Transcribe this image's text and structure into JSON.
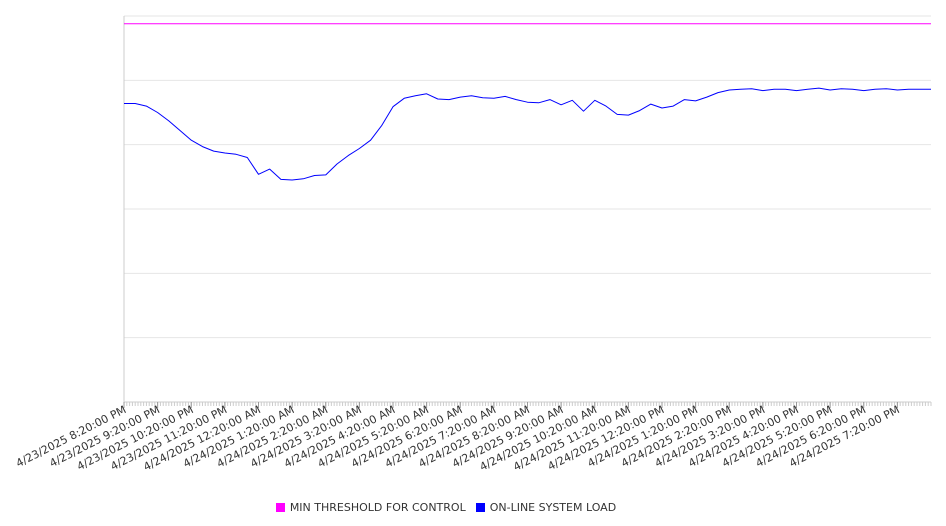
{
  "chart_data": {
    "type": "line",
    "title": "",
    "xlabel": "",
    "ylabel": "",
    "grid": true,
    "legend_position": "bottom",
    "ylim": [
      0,
      6
    ],
    "y_gridlines": [
      0,
      1,
      2,
      3,
      4,
      5,
      6
    ],
    "x_range": [
      "4/23/2025 8:20:00 PM",
      "4/24/2025 8:20:00 PM"
    ],
    "x_tick_labels": [
      "4/23/2025 8:20:00 PM",
      "4/23/2025 9:20:00 PM",
      "4/23/2025 10:20:00 PM",
      "4/23/2025 11:20:00 PM",
      "4/24/2025 12:20:00 AM",
      "4/24/2025 1:20:00 AM",
      "4/24/2025 2:20:00 AM",
      "4/24/2025 3:20:00 AM",
      "4/24/2025 4:20:00 AM",
      "4/24/2025 5:20:00 AM",
      "4/24/2025 6:20:00 AM",
      "4/24/2025 7:20:00 AM",
      "4/24/2025 8:20:00 AM",
      "4/24/2025 9:20:00 AM",
      "4/24/2025 10:20:00 AM",
      "4/24/2025 11:20:00 AM",
      "4/24/2025 12:20:00 PM",
      "4/24/2025 1:20:00 PM",
      "4/24/2025 2:20:00 PM",
      "4/24/2025 3:20:00 PM",
      "4/24/2025 4:20:00 PM",
      "4/24/2025 5:20:00 PM",
      "4/24/2025 6:20:00 PM",
      "4/24/2025 7:20:00 PM"
    ],
    "series": [
      {
        "name": "MIN THRESHOLD FOR CONTROL",
        "color": "#ff00ff",
        "x": [
          "4/23/2025 8:20:00 PM",
          "4/24/2025 8:20:00 PM"
        ],
        "values": [
          5.88,
          5.88
        ]
      },
      {
        "name": "ON-LINE SYSTEM LOAD",
        "color": "#0000ff",
        "x": [
          "4/23/2025 8:20:00 PM",
          "4/23/2025 8:40:00 PM",
          "4/23/2025 9:00:00 PM",
          "4/23/2025 9:20:00 PM",
          "4/23/2025 9:40:00 PM",
          "4/23/2025 10:00:00 PM",
          "4/23/2025 10:20:00 PM",
          "4/23/2025 10:40:00 PM",
          "4/23/2025 11:00:00 PM",
          "4/23/2025 11:20:00 PM",
          "4/23/2025 11:40:00 PM",
          "4/24/2025 12:00:00 AM",
          "4/24/2025 12:20:00 AM",
          "4/24/2025 12:40:00 AM",
          "4/24/2025 1:00:00 AM",
          "4/24/2025 1:20:00 AM",
          "4/24/2025 1:40:00 AM",
          "4/24/2025 2:00:00 AM",
          "4/24/2025 2:20:00 AM",
          "4/24/2025 2:40:00 AM",
          "4/24/2025 3:00:00 AM",
          "4/24/2025 3:20:00 AM",
          "4/24/2025 3:40:00 AM",
          "4/24/2025 4:00:00 AM",
          "4/24/2025 4:20:00 AM",
          "4/24/2025 4:40:00 AM",
          "4/24/2025 5:00:00 AM",
          "4/24/2025 5:20:00 AM",
          "4/24/2025 5:40:00 AM",
          "4/24/2025 6:00:00 AM",
          "4/24/2025 6:20:00 AM",
          "4/24/2025 6:40:00 AM",
          "4/24/2025 7:00:00 AM",
          "4/24/2025 7:20:00 AM",
          "4/24/2025 7:40:00 AM",
          "4/24/2025 8:00:00 AM",
          "4/24/2025 8:20:00 AM",
          "4/24/2025 8:40:00 AM",
          "4/24/2025 9:00:00 AM",
          "4/24/2025 9:20:00 AM",
          "4/24/2025 9:40:00 AM",
          "4/24/2025 10:00:00 AM",
          "4/24/2025 10:20:00 AM",
          "4/24/2025 10:40:00 AM",
          "4/24/2025 11:00:00 AM",
          "4/24/2025 11:20:00 AM",
          "4/24/2025 11:40:00 AM",
          "4/24/2025 12:00:00 PM",
          "4/24/2025 12:20:00 PM",
          "4/24/2025 12:40:00 PM",
          "4/24/2025 1:00:00 PM",
          "4/24/2025 1:20:00 PM",
          "4/24/2025 1:40:00 PM",
          "4/24/2025 2:00:00 PM",
          "4/24/2025 2:20:00 PM",
          "4/24/2025 2:40:00 PM",
          "4/24/2025 3:00:00 PM",
          "4/24/2025 3:20:00 PM",
          "4/24/2025 3:40:00 PM",
          "4/24/2025 4:00:00 PM",
          "4/24/2025 4:20:00 PM",
          "4/24/2025 4:40:00 PM",
          "4/24/2025 5:00:00 PM",
          "4/24/2025 5:20:00 PM",
          "4/24/2025 5:40:00 PM",
          "4/24/2025 6:00:00 PM",
          "4/24/2025 6:20:00 PM",
          "4/24/2025 6:40:00 PM",
          "4/24/2025 7:00:00 PM",
          "4/24/2025 7:20:00 PM",
          "4/24/2025 7:40:00 PM",
          "4/24/2025 8:00:00 PM",
          "4/24/2025 8:20:00 PM"
        ],
        "values": [
          4.64,
          4.64,
          4.6,
          4.5,
          4.37,
          4.22,
          4.07,
          3.97,
          3.9,
          3.87,
          3.85,
          3.8,
          3.54,
          3.62,
          3.46,
          3.45,
          3.47,
          3.52,
          3.53,
          3.7,
          3.83,
          3.94,
          4.07,
          4.3,
          4.59,
          4.72,
          4.76,
          4.79,
          4.71,
          4.7,
          4.74,
          4.76,
          4.73,
          4.72,
          4.75,
          4.7,
          4.66,
          4.65,
          4.7,
          4.62,
          4.69,
          4.52,
          4.69,
          4.6,
          4.47,
          4.46,
          4.53,
          4.63,
          4.57,
          4.6,
          4.7,
          4.68,
          4.74,
          4.81,
          4.85,
          4.86,
          4.87,
          4.84,
          4.86,
          4.86,
          4.84,
          4.86,
          4.88,
          4.85,
          4.87,
          4.86,
          4.84,
          4.86,
          4.87,
          4.85,
          4.86,
          4.86,
          4.86
        ]
      }
    ]
  }
}
